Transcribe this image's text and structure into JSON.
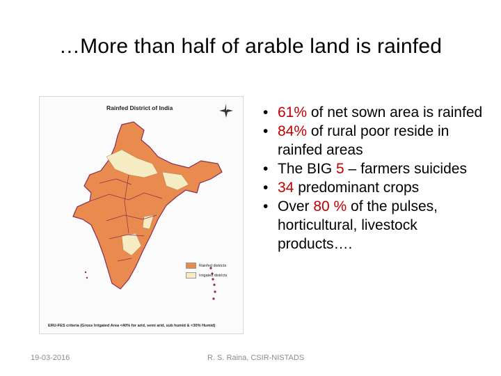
{
  "slide": {
    "title": "…More than half of arable land is rainfed"
  },
  "map": {
    "title": "Rainfed District of India",
    "caption": "ERU-FES criteria (Gross Irrigated Area <40% for arid, semi arid, sub humid & <30% Humid)",
    "legend": [
      {
        "label": "Rainfed districts",
        "color": "#e98a4f"
      },
      {
        "label": "Irrigated districts",
        "color": "#f5ecc4"
      }
    ],
    "colors": {
      "rainfed": "#e98a4f",
      "irrigated": "#f5ecc4",
      "border": "#8a2b55"
    }
  },
  "bullets": [
    {
      "highlight": "61%",
      "text": " of net sown area is rainfed"
    },
    {
      "highlight": "84%",
      "text": " of rural poor reside in rainfed areas"
    },
    {
      "prefix": "The BIG ",
      "highlight": "5",
      "text": " – farmers suicides"
    },
    {
      "highlight": "34",
      "text": " predominant crops"
    },
    {
      "prefix": "Over ",
      "highlight": "80 %",
      "text": " of the pulses, horticultural, livestock products…."
    }
  ],
  "footer": {
    "date": "19-03-2016",
    "author": "R. S. Raina, CSIR-NISTADS"
  }
}
